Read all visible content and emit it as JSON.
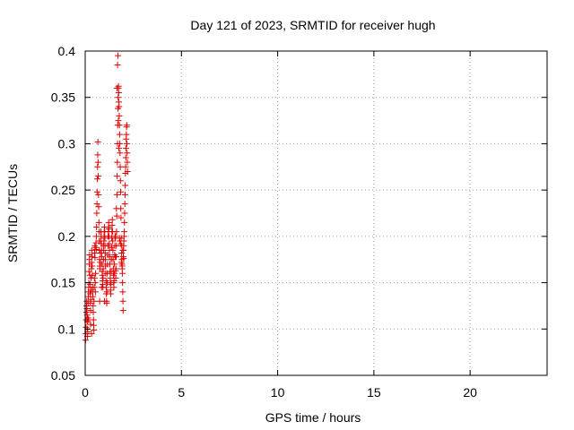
{
  "chart_data": {
    "type": "scatter",
    "title": "Day 121 of 2023, SRMTID for receiver hugh",
    "xlabel": "GPS time / hours",
    "ylabel": "SRMTID / TECUs",
    "xlim": [
      0,
      24
    ],
    "ylim": [
      0.05,
      0.4
    ],
    "x_ticks": [
      0,
      5,
      10,
      15,
      20
    ],
    "x_tick_labels": [
      "0",
      "5",
      "10",
      "15",
      "20"
    ],
    "y_ticks": [
      0.05,
      0.1,
      0.15,
      0.2,
      0.25,
      0.3,
      0.35,
      0.4
    ],
    "y_tick_labels": [
      "0.05",
      "0.1",
      "0.15",
      "0.2",
      "0.25",
      "0.3",
      "0.35",
      "0.4"
    ],
    "grid": true,
    "marker": "+",
    "colors": {
      "series": "#e00000",
      "grid": "#a0a0a0",
      "axis": "#000000"
    },
    "series": [
      {
        "name": "SRMTID",
        "points": [
          [
            0.02,
            0.088
          ],
          [
            0.03,
            0.095
          ],
          [
            0.04,
            0.102
          ],
          [
            0.05,
            0.11
          ],
          [
            0.06,
            0.118
          ],
          [
            0.07,
            0.125
          ],
          [
            0.08,
            0.13
          ],
          [
            0.09,
            0.122
          ],
          [
            0.1,
            0.115
          ],
          [
            0.11,
            0.108
          ],
          [
            0.12,
            0.1
          ],
          [
            0.13,
            0.097
          ],
          [
            0.14,
            0.112
          ],
          [
            0.15,
            0.128
          ],
          [
            0.16,
            0.135
          ],
          [
            0.17,
            0.14
          ],
          [
            0.18,
            0.145
          ],
          [
            0.19,
            0.15
          ],
          [
            0.2,
            0.162
          ],
          [
            0.21,
            0.17
          ],
          [
            0.22,
            0.175
          ],
          [
            0.23,
            0.18
          ],
          [
            0.24,
            0.158
          ],
          [
            0.25,
            0.148
          ],
          [
            0.26,
            0.138
          ],
          [
            0.27,
            0.128
          ],
          [
            0.28,
            0.12
          ],
          [
            0.29,
            0.132
          ],
          [
            0.3,
            0.142
          ],
          [
            0.31,
            0.155
          ],
          [
            0.32,
            0.165
          ],
          [
            0.33,
            0.172
          ],
          [
            0.34,
            0.185
          ],
          [
            0.35,
            0.178
          ],
          [
            0.36,
            0.168
          ],
          [
            0.37,
            0.158
          ],
          [
            0.38,
            0.145
          ],
          [
            0.39,
            0.14
          ],
          [
            0.4,
            0.135
          ],
          [
            0.41,
            0.125
          ],
          [
            0.42,
            0.118
          ],
          [
            0.43,
            0.11
          ],
          [
            0.44,
            0.104
          ],
          [
            0.45,
            0.099
          ],
          [
            0.46,
            0.13
          ],
          [
            0.47,
            0.145
          ],
          [
            0.48,
            0.155
          ],
          [
            0.49,
            0.182
          ],
          [
            0.5,
            0.19
          ],
          [
            0.51,
            0.177
          ],
          [
            0.52,
            0.15
          ],
          [
            0.53,
            0.14
          ],
          [
            0.54,
            0.16
          ],
          [
            0.55,
            0.188
          ],
          [
            0.56,
            0.193
          ],
          [
            0.57,
            0.186
          ],
          [
            0.58,
            0.2
          ],
          [
            0.59,
            0.21
          ],
          [
            0.6,
            0.225
          ],
          [
            0.61,
            0.235
          ],
          [
            0.62,
            0.248
          ],
          [
            0.63,
            0.262
          ],
          [
            0.64,
            0.275
          ],
          [
            0.65,
            0.288
          ],
          [
            0.66,
            0.302
          ],
          [
            0.67,
            0.28
          ],
          [
            0.68,
            0.265
          ],
          [
            0.69,
            0.245
          ],
          [
            0.7,
            0.232
          ],
          [
            0.71,
            0.215
          ],
          [
            0.72,
            0.205
          ],
          [
            0.73,
            0.195
          ],
          [
            0.74,
            0.185
          ],
          [
            0.75,
            0.175
          ],
          [
            0.76,
            0.168
          ],
          [
            0.77,
            0.165
          ],
          [
            0.78,
            0.172
          ],
          [
            0.79,
            0.182
          ],
          [
            0.8,
            0.195
          ],
          [
            0.81,
            0.205
          ],
          [
            0.82,
            0.205
          ],
          [
            0.83,
            0.2
          ],
          [
            0.84,
            0.192
          ],
          [
            0.85,
            0.185
          ],
          [
            0.86,
            0.178
          ],
          [
            0.87,
            0.17
          ],
          [
            0.88,
            0.162
          ],
          [
            0.89,
            0.158
          ],
          [
            0.9,
            0.152
          ],
          [
            0.91,
            0.148
          ],
          [
            0.92,
            0.145
          ],
          [
            0.93,
            0.155
          ],
          [
            0.94,
            0.165
          ],
          [
            0.95,
            0.175
          ],
          [
            0.96,
            0.185
          ],
          [
            0.97,
            0.195
          ],
          [
            0.98,
            0.2
          ],
          [
            0.99,
            0.205
          ],
          [
            1.0,
            0.21
          ],
          [
            1.01,
            0.205
          ],
          [
            1.02,
            0.198
          ],
          [
            1.03,
            0.19
          ],
          [
            1.04,
            0.182
          ],
          [
            1.05,
            0.175
          ],
          [
            1.06,
            0.168
          ],
          [
            1.07,
            0.16
          ],
          [
            1.08,
            0.152
          ],
          [
            1.09,
            0.145
          ],
          [
            1.1,
            0.138
          ],
          [
            1.11,
            0.13
          ],
          [
            1.12,
            0.128
          ],
          [
            1.13,
            0.14
          ],
          [
            1.14,
            0.15
          ],
          [
            1.15,
            0.16
          ],
          [
            1.16,
            0.17
          ],
          [
            1.17,
            0.18
          ],
          [
            1.18,
            0.19
          ],
          [
            1.19,
            0.2
          ],
          [
            1.2,
            0.205
          ],
          [
            1.21,
            0.21
          ],
          [
            1.22,
            0.215
          ],
          [
            1.23,
            0.208
          ],
          [
            1.24,
            0.2
          ],
          [
            1.25,
            0.192
          ],
          [
            1.26,
            0.185
          ],
          [
            1.27,
            0.178
          ],
          [
            1.28,
            0.17
          ],
          [
            1.29,
            0.162
          ],
          [
            1.3,
            0.155
          ],
          [
            1.31,
            0.148
          ],
          [
            1.32,
            0.142
          ],
          [
            1.33,
            0.138
          ],
          [
            1.34,
            0.15
          ],
          [
            1.35,
            0.162
          ],
          [
            1.36,
            0.175
          ],
          [
            1.37,
            0.188
          ],
          [
            1.38,
            0.198
          ],
          [
            1.39,
            0.205
          ],
          [
            1.4,
            0.212
          ],
          [
            1.41,
            0.218
          ],
          [
            1.42,
            0.205
          ],
          [
            1.43,
            0.195
          ],
          [
            1.44,
            0.185
          ],
          [
            1.45,
            0.175
          ],
          [
            1.46,
            0.165
          ],
          [
            1.47,
            0.158
          ],
          [
            1.48,
            0.15
          ],
          [
            1.49,
            0.145
          ],
          [
            1.5,
            0.152
          ],
          [
            1.51,
            0.16
          ],
          [
            1.52,
            0.17
          ],
          [
            1.53,
            0.18
          ],
          [
            1.54,
            0.19
          ],
          [
            1.55,
            0.2
          ],
          [
            1.56,
            0.198
          ],
          [
            1.57,
            0.178
          ],
          [
            1.58,
            0.163
          ],
          [
            1.59,
            0.155
          ],
          [
            1.6,
            0.165
          ],
          [
            1.61,
            0.178
          ],
          [
            1.62,
            0.19
          ],
          [
            1.63,
            0.205
          ],
          [
            1.64,
            0.222
          ],
          [
            1.65,
            0.245
          ],
          [
            1.66,
            0.265
          ],
          [
            1.67,
            0.28
          ],
          [
            1.68,
            0.3
          ],
          [
            1.69,
            0.32
          ],
          [
            1.7,
            0.338
          ],
          [
            1.71,
            0.35
          ],
          [
            1.72,
            0.36
          ],
          [
            1.73,
            0.362
          ],
          [
            1.74,
            0.355
          ],
          [
            1.75,
            0.345
          ],
          [
            1.76,
            0.34
          ],
          [
            1.77,
            0.33
          ],
          [
            1.78,
            0.32
          ],
          [
            1.79,
            0.31
          ],
          [
            1.8,
            0.3
          ],
          [
            1.81,
            0.29
          ],
          [
            1.82,
            0.275
          ],
          [
            1.83,
            0.26
          ],
          [
            1.84,
            0.248
          ],
          [
            1.85,
            0.23
          ],
          [
            1.86,
            0.22
          ],
          [
            1.87,
            0.198
          ],
          [
            1.88,
            0.19
          ],
          [
            1.89,
            0.182
          ],
          [
            1.9,
            0.175
          ],
          [
            1.91,
            0.17
          ],
          [
            1.92,
            0.165
          ],
          [
            1.93,
            0.16
          ],
          [
            1.94,
            0.15
          ],
          [
            1.95,
            0.14
          ],
          [
            1.96,
            0.13
          ],
          [
            1.97,
            0.12
          ],
          [
            1.98,
            0.178
          ],
          [
            1.99,
            0.185
          ],
          [
            2.0,
            0.19
          ],
          [
            2.01,
            0.195
          ],
          [
            2.02,
            0.2
          ],
          [
            2.03,
            0.205
          ],
          [
            2.04,
            0.215
          ],
          [
            2.05,
            0.225
          ],
          [
            2.06,
            0.235
          ],
          [
            2.07,
            0.245
          ],
          [
            2.08,
            0.255
          ],
          [
            2.09,
            0.268
          ],
          [
            2.1,
            0.275
          ],
          [
            2.11,
            0.285
          ],
          [
            2.12,
            0.295
          ],
          [
            2.13,
            0.305
          ],
          [
            2.14,
            0.31
          ],
          [
            2.15,
            0.318
          ],
          [
            2.16,
            0.32
          ],
          [
            2.17,
            0.3
          ],
          [
            2.18,
            0.29
          ],
          [
            2.19,
            0.28
          ],
          [
            2.2,
            0.27
          ],
          [
            1.68,
            0.385
          ],
          [
            1.7,
            0.395
          ],
          [
            1.65,
            0.36
          ],
          [
            1.72,
            0.325
          ],
          [
            1.75,
            0.295
          ],
          [
            1.62,
            0.23
          ],
          [
            1.58,
            0.2
          ],
          [
            0.95,
            0.19
          ],
          [
            0.85,
            0.145
          ],
          [
            1.0,
            0.13
          ],
          [
            0.75,
            0.13
          ],
          [
            0.28,
            0.105
          ],
          [
            0.18,
            0.11
          ],
          [
            0.12,
            0.092
          ],
          [
            0.33,
            0.095
          ],
          [
            1.88,
            0.172
          ],
          [
            1.92,
            0.168
          ],
          [
            2.0,
            0.176
          ],
          [
            1.95,
            0.185
          ],
          [
            1.85,
            0.192
          ],
          [
            1.8,
            0.195
          ],
          [
            1.78,
            0.198
          ]
        ]
      }
    ]
  }
}
